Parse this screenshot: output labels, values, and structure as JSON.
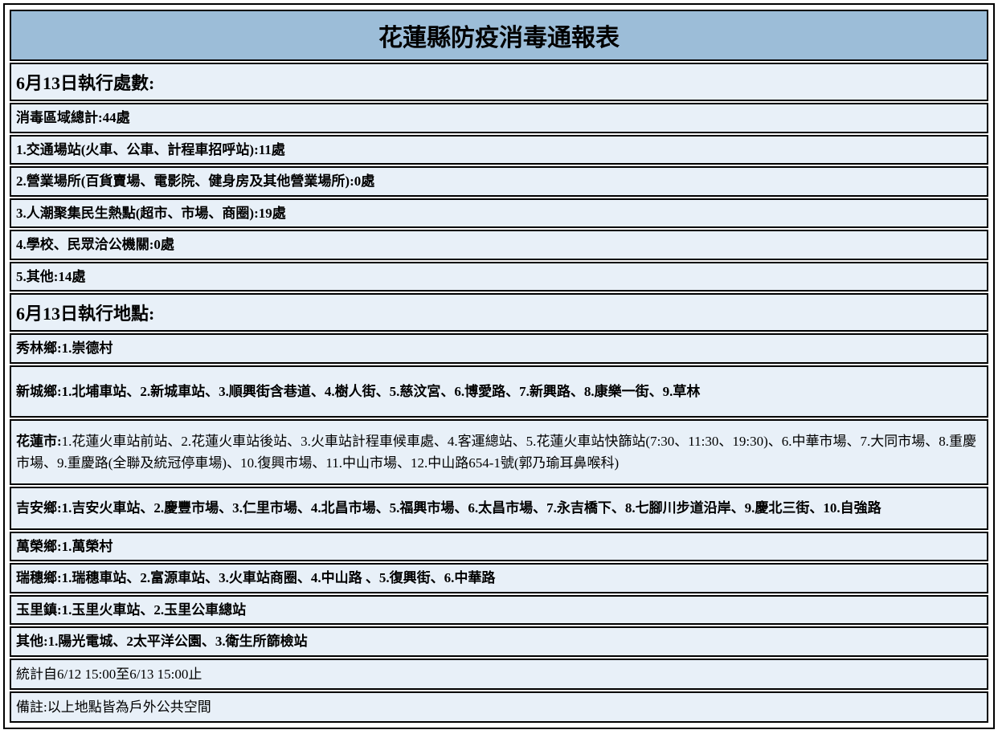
{
  "title": "花蓮縣防疫消毒通報表",
  "sections": {
    "counts_header": "6月13日執行處數:",
    "total": "消毒區域總計:44處",
    "category1": "1.交通場站(火車、公車、計程車招呼站):11處",
    "category2": "2.營業場所(百貨賣場、電影院、健身房及其他營業場所):0處",
    "category3": "3.人潮聚集民生熱點(超市、市場、商圈):19處",
    "category4": "4.學校、民眾洽公機關:0處",
    "category5": "5.其他:14處",
    "locations_header": "6月13日執行地點:"
  },
  "locations": {
    "xiulin": "秀林鄉:1.崇德村",
    "xincheng": "新城鄉:1.北埔車站、2.新城車站、3.順興街含巷道、4.樹人街、5.慈汶宮、6.博愛路、7.新興路、8.康樂一街、9.草林",
    "hualien_label": "花蓮市:",
    "hualien_content": "1.花蓮火車站前站、2.花蓮火車站後站、3.火車站計程車候車處、4.客運總站、5.花蓮火車站快篩站(7:30、11:30、19:30)、6.中華市場、7.大同市場、8.重慶市場、9.重慶路(全聯及統冠停車場)、10.復興市場、11.中山市場、12.中山路654-1號(郭乃瑜耳鼻喉科)",
    "jian": "吉安鄉:1.吉安火車站、2.慶豐市場、3.仁里市場、4.北昌市場、5.福興市場、6.太昌市場、7.永吉橋下、8.七腳川步道沿岸、9.慶北三街、10.自強路",
    "wanrong": "萬榮鄉:1.萬榮村",
    "ruisui": "瑞穗鄉:1.瑞穗車站、2.富源車站、3.火車站商圈、4.中山路 、5.復興街、6.中華路",
    "yuli": "玉里鎮:1.玉里火車站、2.玉里公車總站",
    "other": "其他:1.陽光電城、2太平洋公園、3.衛生所篩檢站"
  },
  "footer": {
    "stats_period": "統計自6/12 15:00至6/13 15:00止",
    "note": "備註:以上地點皆為戶外公共空間"
  },
  "colors": {
    "title_bg": "#9cbdd8",
    "row_bg": "#e8f0f8",
    "border": "#000000",
    "text": "#000000"
  },
  "typography": {
    "title_fontsize": 30,
    "section_header_fontsize": 22,
    "body_fontsize": 17,
    "font_family": "Microsoft JhengHei, PMingLiU, serif"
  }
}
